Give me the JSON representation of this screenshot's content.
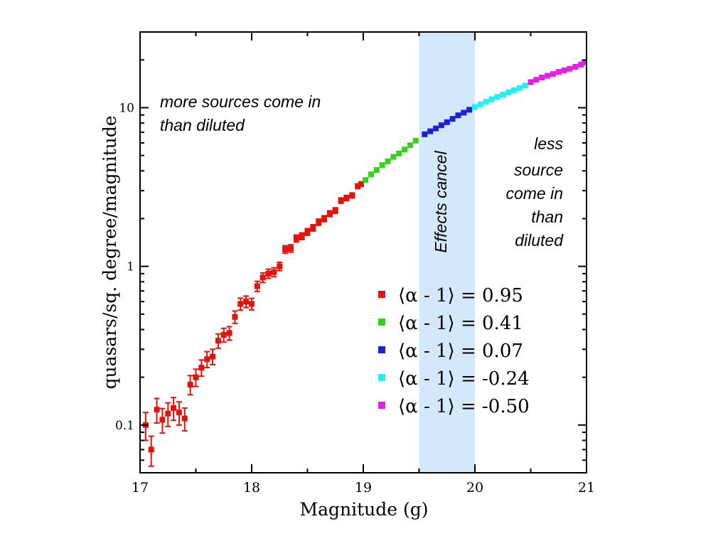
{
  "chart_data": {
    "type": "scatter",
    "xlabel": "Magnitude (g)",
    "ylabel": "quasars/sq. degree/magnitude",
    "xlim": [
      17,
      21
    ],
    "ylim": [
      0.05,
      30
    ],
    "y_scale": "log",
    "grid": false,
    "legend_placement": "bottom-right",
    "x_ticks": [
      17,
      18,
      19,
      20,
      21
    ],
    "y_ticks": [
      0.1,
      1,
      10
    ],
    "x_tick_labels": [
      "17",
      "18",
      "19",
      "20",
      "21"
    ],
    "y_tick_labels": [
      "0.1",
      "1",
      "10"
    ],
    "shaded_band": {
      "x": [
        19.5,
        20.0
      ],
      "label": "Effects cancel",
      "color": "#d3e8fb"
    },
    "annotations": {
      "left": [
        "more sources come in",
        "than diluted"
      ],
      "right": [
        "less",
        "source",
        "come in",
        "than",
        "diluted"
      ]
    },
    "series": [
      {
        "name": "⟨α - 1⟩ = 0.95",
        "color": "#e3120b",
        "points": [
          [
            17.05,
            0.1,
            0.02
          ],
          [
            17.1,
            0.07,
            0.015
          ],
          [
            17.15,
            0.125,
            0.022
          ],
          [
            17.2,
            0.108,
            0.019
          ],
          [
            17.25,
            0.118,
            0.02
          ],
          [
            17.3,
            0.128,
            0.021
          ],
          [
            17.35,
            0.12,
            0.02
          ],
          [
            17.4,
            0.11,
            0.018
          ],
          [
            17.45,
            0.18,
            0.025
          ],
          [
            17.5,
            0.2,
            0.025
          ],
          [
            17.55,
            0.23,
            0.027
          ],
          [
            17.6,
            0.26,
            0.03
          ],
          [
            17.65,
            0.27,
            0.03
          ],
          [
            17.7,
            0.34,
            0.035
          ],
          [
            17.75,
            0.37,
            0.037
          ],
          [
            17.8,
            0.38,
            0.037
          ],
          [
            17.85,
            0.48,
            0.043
          ],
          [
            17.9,
            0.58,
            0.05
          ],
          [
            17.95,
            0.6,
            0.05
          ],
          [
            18.0,
            0.58,
            0.048
          ],
          [
            18.05,
            0.75,
            0.055
          ],
          [
            18.1,
            0.85,
            0.06
          ],
          [
            18.15,
            0.9,
            0.06
          ],
          [
            18.2,
            0.92,
            0.06
          ],
          [
            18.25,
            1.0,
            0.06
          ],
          [
            18.3,
            1.28,
            0.07
          ],
          [
            18.35,
            1.3,
            0.07
          ],
          [
            18.4,
            1.5,
            0.075
          ],
          [
            18.45,
            1.55,
            0.075
          ],
          [
            18.5,
            1.65,
            0.08
          ],
          [
            18.55,
            1.75,
            0.08
          ],
          [
            18.6,
            1.9,
            0.085
          ],
          [
            18.65,
            2.0,
            0.085
          ],
          [
            18.7,
            2.15,
            0.09
          ],
          [
            18.75,
            2.25,
            0.09
          ],
          [
            18.8,
            2.6,
            0.1
          ],
          [
            18.85,
            2.7,
            0.1
          ],
          [
            18.9,
            2.8,
            0.1
          ],
          [
            18.95,
            3.2,
            0.11
          ],
          [
            18.98,
            3.3,
            0.11
          ]
        ]
      },
      {
        "name": "⟨α - 1⟩ = 0.41",
        "color": "#31d31a",
        "points": [
          [
            19.02,
            3.5
          ],
          [
            19.07,
            3.8
          ],
          [
            19.12,
            4.05
          ],
          [
            19.17,
            4.35
          ],
          [
            19.22,
            4.6
          ],
          [
            19.27,
            4.9
          ],
          [
            19.32,
            5.15
          ],
          [
            19.37,
            5.45
          ],
          [
            19.42,
            5.8
          ],
          [
            19.47,
            6.2
          ]
        ]
      },
      {
        "name": "⟨α - 1⟩ = 0.07",
        "color": "#1a21d8",
        "points": [
          [
            19.55,
            6.8
          ],
          [
            19.6,
            7.1
          ],
          [
            19.65,
            7.4
          ],
          [
            19.7,
            7.75
          ],
          [
            19.75,
            8.1
          ],
          [
            19.8,
            8.5
          ],
          [
            19.85,
            8.95
          ],
          [
            19.9,
            9.3
          ],
          [
            19.95,
            9.7
          ]
        ]
      },
      {
        "name": "⟨α - 1⟩ = -0.24",
        "color": "#1ef2f2",
        "points": [
          [
            20.0,
            10.1
          ],
          [
            20.05,
            10.5
          ],
          [
            20.1,
            10.9
          ],
          [
            20.15,
            11.3
          ],
          [
            20.2,
            11.7
          ],
          [
            20.25,
            12.1
          ],
          [
            20.3,
            12.5
          ],
          [
            20.35,
            12.9
          ],
          [
            20.4,
            13.3
          ],
          [
            20.45,
            13.8
          ]
        ]
      },
      {
        "name": "⟨α - 1⟩ = -0.50",
        "color": "#e51ee5",
        "points": [
          [
            20.5,
            14.5
          ],
          [
            20.55,
            15.0
          ],
          [
            20.6,
            15.5
          ],
          [
            20.65,
            15.9
          ],
          [
            20.7,
            16.3
          ],
          [
            20.75,
            16.8
          ],
          [
            20.8,
            17.2
          ],
          [
            20.85,
            17.6
          ],
          [
            20.9,
            18.1
          ],
          [
            20.95,
            18.7
          ],
          [
            20.98,
            19.3
          ]
        ]
      }
    ]
  }
}
